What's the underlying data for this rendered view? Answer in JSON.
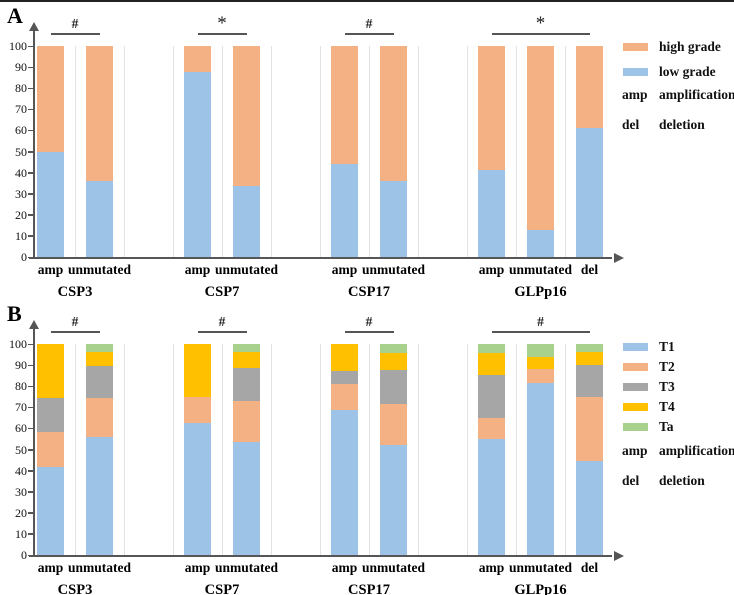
{
  "figure_title": "",
  "panels": [
    {
      "label": "A"
    },
    {
      "label": "B"
    }
  ],
  "chart_data": [
    {
      "type": "bar",
      "panel": "A",
      "stacked": true,
      "ylim": [
        0,
        100
      ],
      "yticks": [
        0,
        10,
        20,
        30,
        40,
        50,
        60,
        70,
        80,
        90,
        100
      ],
      "grid": "faint vertical slot separators",
      "series_order": [
        "low grade",
        "high grade"
      ],
      "colors": {
        "low grade": "#9DC3E6",
        "high grade": "#F4B183"
      },
      "groups": [
        {
          "name": "CSP3",
          "annotation": "#",
          "bars": [
            {
              "label": "amp",
              "values": {
                "low grade": 50,
                "high grade": 50
              }
            },
            {
              "label": "unmutated",
              "values": {
                "low grade": 36,
                "high grade": 64
              }
            }
          ]
        },
        {
          "name": "CSP7",
          "annotation": "*",
          "bars": [
            {
              "label": "amp",
              "values": {
                "low grade": 87.5,
                "high grade": 12.5
              }
            },
            {
              "label": "unmutated",
              "values": {
                "low grade": 33.5,
                "high grade": 66.5
              }
            }
          ]
        },
        {
          "name": "CSP17",
          "annotation": "#",
          "bars": [
            {
              "label": "amp",
              "values": {
                "low grade": 44,
                "high grade": 56
              }
            },
            {
              "label": "unmutated",
              "values": {
                "low grade": 36,
                "high grade": 64
              }
            }
          ]
        },
        {
          "name": "GLPp16",
          "annotation": "*",
          "bars": [
            {
              "label": "amp",
              "values": {
                "low grade": 41,
                "high grade": 59
              }
            },
            {
              "label": "unmutated",
              "values": {
                "low grade": 13,
                "high grade": 87
              }
            },
            {
              "label": "del",
              "values": {
                "low grade": 61,
                "high grade": 39
              }
            }
          ]
        }
      ],
      "legend": {
        "position": "right",
        "items": [
          {
            "label": "high grade",
            "swatch": "#F4B183"
          },
          {
            "label": "low grade",
            "swatch": "#9DC3E6"
          }
        ],
        "abbreviations": [
          {
            "abbr": "amp",
            "label": "amplification"
          },
          {
            "abbr": "del",
            "label": "deletion"
          }
        ]
      }
    },
    {
      "type": "bar",
      "panel": "B",
      "stacked": true,
      "ylim": [
        0,
        100
      ],
      "yticks": [
        0,
        10,
        20,
        30,
        40,
        50,
        60,
        70,
        80,
        90,
        100
      ],
      "grid": "faint vertical slot separators",
      "series_order": [
        "T1",
        "T2",
        "T3",
        "T4",
        "Ta"
      ],
      "colors": {
        "T1": "#9DC3E6",
        "T2": "#F4B183",
        "T3": "#A6A6A6",
        "T4": "#FFC000",
        "Ta": "#A9D18E"
      },
      "groups": [
        {
          "name": "CSP3",
          "annotation": "#",
          "bars": [
            {
              "label": "amp",
              "values": {
                "T1": 41.5,
                "T2": 17,
                "T3": 16,
                "T4": 25.5,
                "Ta": 0
              }
            },
            {
              "label": "unmutated",
              "values": {
                "T1": 56,
                "T2": 18.5,
                "T3": 15,
                "T4": 6.5,
                "Ta": 4
              }
            }
          ]
        },
        {
          "name": "CSP7",
          "annotation": "#",
          "bars": [
            {
              "label": "amp",
              "values": {
                "T1": 62.5,
                "T2": 12.5,
                "T3": 0,
                "T4": 25,
                "Ta": 0
              }
            },
            {
              "label": "unmutated",
              "values": {
                "T1": 53.5,
                "T2": 19.5,
                "T3": 15.5,
                "T4": 7.5,
                "Ta": 4
              }
            }
          ]
        },
        {
          "name": "CSP17",
          "annotation": "#",
          "bars": [
            {
              "label": "amp",
              "values": {
                "T1": 68.5,
                "T2": 12.5,
                "T3": 6,
                "T4": 13,
                "Ta": 0
              }
            },
            {
              "label": "unmutated",
              "values": {
                "T1": 52,
                "T2": 19.5,
                "T3": 16,
                "T4": 8,
                "Ta": 4.5
              }
            }
          ]
        },
        {
          "name": "GLPp16",
          "annotation": "#",
          "bars": [
            {
              "label": "amp",
              "values": {
                "T1": 55,
                "T2": 10,
                "T3": 20.5,
                "T4": 10,
                "Ta": 4.5
              }
            },
            {
              "label": "unmutated",
              "values": {
                "T1": 81.5,
                "T2": 6.5,
                "T3": 0,
                "T4": 6,
                "Ta": 6
              }
            },
            {
              "label": "del",
              "values": {
                "T1": 44.5,
                "T2": 30.5,
                "T3": 15,
                "T4": 6,
                "Ta": 4
              }
            }
          ]
        }
      ],
      "legend": {
        "position": "right",
        "items": [
          {
            "label": "T1",
            "swatch": "#9DC3E6"
          },
          {
            "label": "T2",
            "swatch": "#F4B183"
          },
          {
            "label": "T3",
            "swatch": "#A6A6A6"
          },
          {
            "label": "T4",
            "swatch": "#FFC000"
          },
          {
            "label": "Ta",
            "swatch": "#A9D18E"
          }
        ],
        "abbreviations": [
          {
            "abbr": "amp",
            "label": "amplification"
          },
          {
            "abbr": "del",
            "label": "deletion"
          }
        ]
      }
    }
  ]
}
